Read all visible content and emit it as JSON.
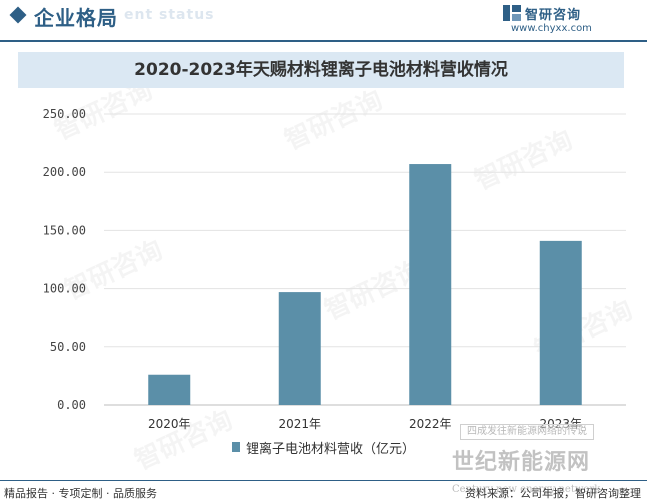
{
  "header": {
    "title": "企业格局",
    "subtitle": "ent status",
    "brand_name": "智研咨询",
    "brand_url": "www.chyxx.com"
  },
  "colors": {
    "accent": "#2e5f86",
    "bar": "#5b8fa8",
    "title_band": "#dbe8f3",
    "grid": "#e3e3e3"
  },
  "chart_data": {
    "type": "bar",
    "title": "2020-2023年天赐材料锂离子电池材料营收情况",
    "categories": [
      "2020年",
      "2021年",
      "2022年",
      "2023年"
    ],
    "series": [
      {
        "name": "锂离子电池材料营收（亿元）",
        "values": [
          26,
          97,
          207,
          141
        ]
      }
    ],
    "ylim": [
      0,
      250
    ],
    "yticks": [
      "0.00",
      "50.00",
      "100.00",
      "150.00",
      "200.00",
      "250.00"
    ],
    "grid": true,
    "legend_position": "bottom-center"
  },
  "watermark": {
    "box_text": "四成发往新能源网络的传说",
    "big_text": "世纪新能源网",
    "small_text": "Century new energy network"
  },
  "footer": {
    "left": "精品报告 · 专项定制 · 品质服务",
    "right": "资料来源：公司年报，智研咨询整理"
  }
}
